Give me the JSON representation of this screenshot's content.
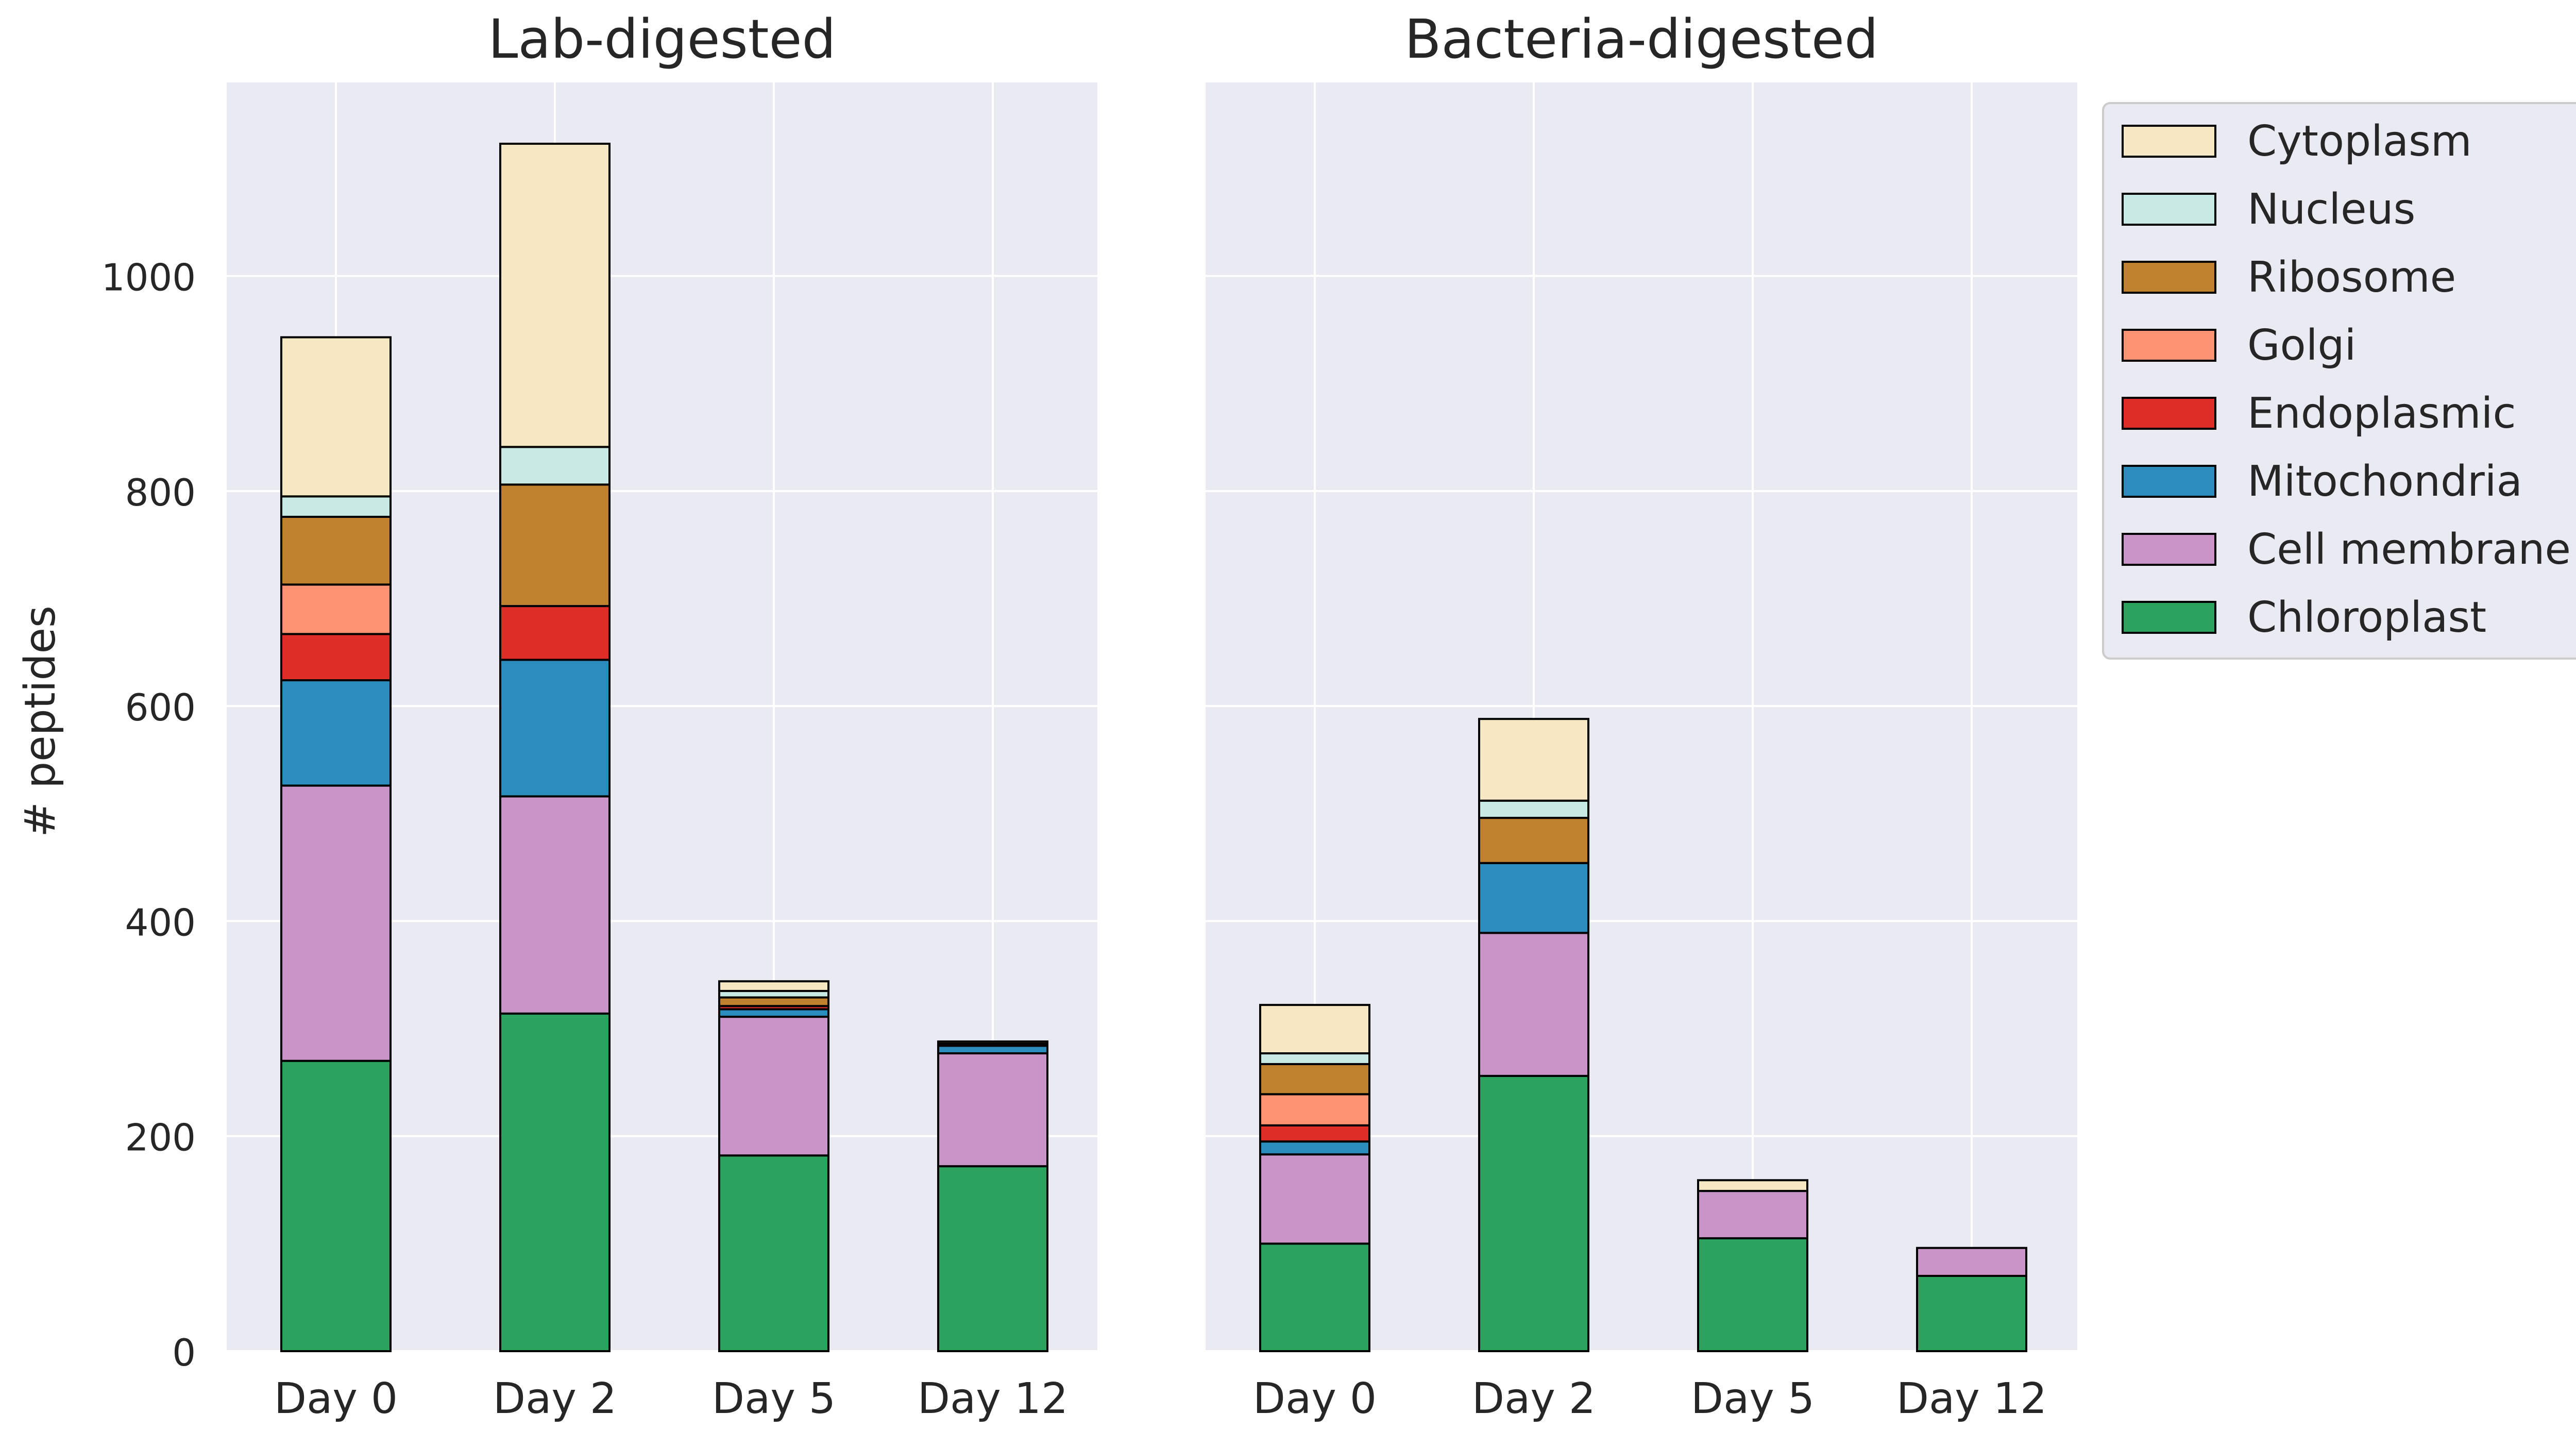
{
  "colors": {
    "panel_background": "#EAEAF2",
    "grid": "#FFFFFF",
    "bar_edge": "#000000",
    "text": "#262626"
  },
  "chart_data": [
    {
      "type": "bar",
      "stacked": true,
      "title": "Lab-digested",
      "ylabel": "# peptides",
      "xlabel": "",
      "ylim": [
        0,
        1180
      ],
      "yticks": [
        0,
        200,
        400,
        600,
        800,
        1000
      ],
      "grid": true,
      "categories": [
        "Day 0",
        "Day 2",
        "Day 5",
        "Day 12"
      ],
      "series": [
        {
          "name": "Chloroplast",
          "color": "#2CA25F",
          "values": [
            270,
            314,
            182,
            172
          ]
        },
        {
          "name": "Cell membrane",
          "color": "#C994C7",
          "values": [
            256,
            202,
            129,
            105
          ]
        },
        {
          "name": "Mitochondria",
          "color": "#2B8CBE",
          "values": [
            98,
            127,
            7,
            7
          ]
        },
        {
          "name": "Endoplasmic",
          "color": "#DE2D26",
          "values": [
            43,
            50,
            3,
            2
          ]
        },
        {
          "name": "Golgi",
          "color": "#FC9272",
          "values": [
            46,
            0,
            0,
            0
          ]
        },
        {
          "name": "Ribosome",
          "color": "#BF812D",
          "values": [
            63,
            113,
            8,
            2
          ]
        },
        {
          "name": "Nucleus",
          "color": "#C7EAE5",
          "values": [
            19,
            35,
            6,
            0
          ]
        },
        {
          "name": "Cytoplasm",
          "color": "#F6E8C3",
          "values": [
            148,
            282,
            9,
            0
          ]
        }
      ]
    },
    {
      "type": "bar",
      "stacked": true,
      "title": "Bacteria-digested",
      "ylabel": "",
      "xlabel": "",
      "ylim": [
        0,
        1180
      ],
      "yticks": [
        0,
        200,
        400,
        600,
        800,
        1000
      ],
      "grid": true,
      "categories": [
        "Day 0",
        "Day 2",
        "Day 5",
        "Day 12"
      ],
      "series": [
        {
          "name": "Chloroplast",
          "color": "#2CA25F",
          "values": [
            100,
            256,
            105,
            70
          ]
        },
        {
          "name": "Cell membrane",
          "color": "#C994C7",
          "values": [
            83,
            133,
            44,
            26
          ]
        },
        {
          "name": "Mitochondria",
          "color": "#2B8CBE",
          "values": [
            12,
            65,
            0,
            0
          ]
        },
        {
          "name": "Endoplasmic",
          "color": "#DE2D26",
          "values": [
            15,
            0,
            0,
            0
          ]
        },
        {
          "name": "Golgi",
          "color": "#FC9272",
          "values": [
            29,
            0,
            0,
            0
          ]
        },
        {
          "name": "Ribosome",
          "color": "#BF812D",
          "values": [
            28,
            42,
            0,
            0
          ]
        },
        {
          "name": "Nucleus",
          "color": "#C7EAE5",
          "values": [
            10,
            16,
            0,
            0
          ]
        },
        {
          "name": "Cytoplasm",
          "color": "#F6E8C3",
          "values": [
            45,
            76,
            10,
            0
          ]
        }
      ]
    }
  ],
  "legend": {
    "placement": "outside-right",
    "entries": [
      "Cytoplasm",
      "Nucleus",
      "Ribosome",
      "Golgi",
      "Endoplasmic",
      "Mitochondria",
      "Cell membrane",
      "Chloroplast"
    ]
  }
}
